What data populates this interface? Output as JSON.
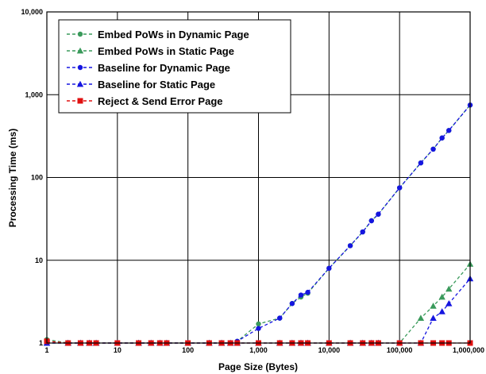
{
  "chart_data": {
    "type": "line",
    "title": "",
    "xlabel": "Page Size (Bytes)",
    "ylabel": "Processing Time (ms)",
    "x_scale": "log",
    "y_scale": "log",
    "xlim": [
      1,
      1000000
    ],
    "ylim": [
      1,
      10000
    ],
    "x_ticks": [
      1,
      10,
      100,
      1000,
      10000,
      100000,
      1000000
    ],
    "x_tick_labels": [
      "1",
      "10",
      "100",
      "1,000",
      "10,000",
      "100,000",
      "1,000,000"
    ],
    "y_ticks": [
      1,
      10,
      100,
      1000,
      10000
    ],
    "y_tick_labels": [
      "1",
      "10",
      "100",
      "1,000",
      "10,000"
    ],
    "grid": true,
    "legend_position": "top-left",
    "series": [
      {
        "name": "Embed PoWs in Dynamic Page",
        "color": "#3a9a5b",
        "marker": "circle",
        "x": [
          1,
          2,
          3,
          4,
          5,
          10,
          20,
          30,
          40,
          50,
          100,
          200,
          300,
          400,
          500,
          1000,
          2000,
          3000,
          4000,
          5000,
          10000,
          20000,
          30000,
          40000,
          50000,
          100000,
          200000,
          300000,
          400000,
          500000,
          1000000
        ],
        "y": [
          1.1,
          1,
          1,
          1,
          1,
          1,
          1,
          1,
          1,
          1,
          1,
          1,
          1,
          1,
          1.05,
          1.7,
          2,
          3,
          3.6,
          4,
          8,
          15,
          22,
          30,
          36,
          75,
          150,
          220,
          300,
          370,
          750
        ]
      },
      {
        "name": "Embed PoWs in Static Page",
        "color": "#3a9a5b",
        "marker": "triangle",
        "x": [
          1,
          2,
          3,
          4,
          5,
          10,
          20,
          30,
          40,
          50,
          100,
          200,
          300,
          400,
          500,
          1000,
          2000,
          3000,
          4000,
          5000,
          10000,
          20000,
          30000,
          40000,
          50000,
          100000,
          200000,
          300000,
          400000,
          500000,
          1000000
        ],
        "y": [
          1,
          1,
          1,
          1,
          1,
          1,
          1,
          1,
          1,
          1,
          1,
          1,
          1,
          1,
          1,
          1,
          1,
          1,
          1,
          1,
          1,
          1,
          1,
          1,
          1,
          1,
          2,
          2.8,
          3.6,
          4.5,
          9
        ]
      },
      {
        "name": "Baseline for Dynamic Page",
        "color": "#1515e0",
        "marker": "circle",
        "x": [
          1,
          2,
          3,
          4,
          5,
          10,
          20,
          30,
          40,
          50,
          100,
          200,
          300,
          400,
          500,
          1000,
          2000,
          3000,
          4000,
          5000,
          10000,
          20000,
          30000,
          40000,
          50000,
          100000,
          200000,
          300000,
          400000,
          500000,
          1000000
        ],
        "y": [
          1,
          1,
          1,
          1,
          1,
          1,
          1,
          1,
          1,
          1,
          1,
          1,
          1,
          1,
          1.05,
          1.5,
          2,
          3,
          3.8,
          4.1,
          8,
          15,
          22,
          30,
          36,
          75,
          150,
          220,
          300,
          370,
          750
        ]
      },
      {
        "name": "Baseline for Static Page",
        "color": "#1515e0",
        "marker": "triangle",
        "x": [
          1,
          2,
          3,
          4,
          5,
          10,
          20,
          30,
          40,
          50,
          100,
          200,
          300,
          400,
          500,
          1000,
          2000,
          3000,
          4000,
          5000,
          10000,
          20000,
          30000,
          40000,
          50000,
          100000,
          200000,
          300000,
          400000,
          500000,
          1000000
        ],
        "y": [
          1,
          1,
          1,
          1,
          1,
          1,
          1,
          1,
          1,
          1,
          1,
          1,
          1,
          1,
          1,
          1,
          1,
          1,
          1,
          1,
          1,
          1,
          1,
          1,
          1,
          1,
          1,
          2,
          2.4,
          3,
          6
        ]
      },
      {
        "name": "Reject & Send Error Page",
        "color": "#e01010",
        "marker": "square",
        "x": [
          1,
          2,
          3,
          4,
          5,
          10,
          20,
          30,
          40,
          50,
          100,
          200,
          300,
          400,
          500,
          1000,
          2000,
          3000,
          4000,
          5000,
          10000,
          20000,
          30000,
          40000,
          50000,
          100000,
          200000,
          300000,
          400000,
          500000,
          1000000
        ],
        "y": [
          1.05,
          1,
          1,
          1,
          1,
          1,
          1,
          1,
          1,
          1,
          1,
          1,
          1,
          1,
          1,
          1,
          1,
          1,
          1,
          1,
          1,
          1,
          1,
          1,
          1,
          1,
          1,
          1,
          1,
          1,
          1
        ]
      }
    ]
  }
}
